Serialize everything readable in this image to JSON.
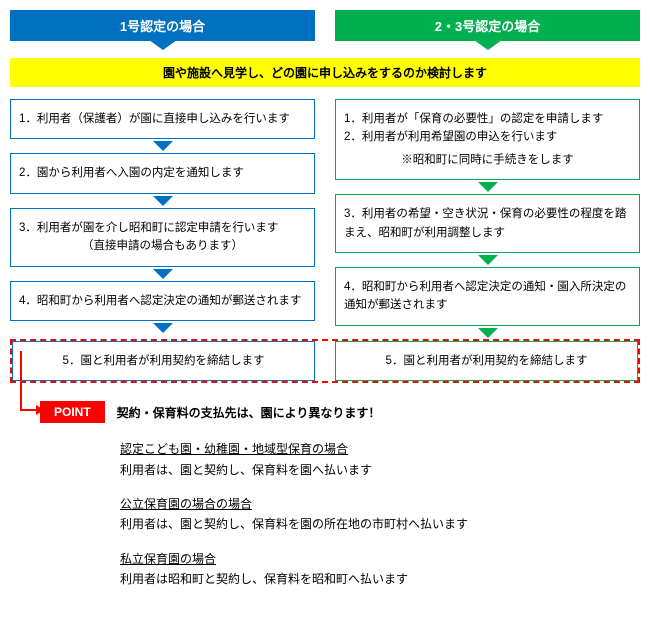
{
  "colors": {
    "left": "#0070c0",
    "right": "#00b050",
    "banner": "#ffff00",
    "dashed": "#ff0000",
    "point": "#ff0000"
  },
  "header": {
    "left": "1号認定の場合",
    "right": "2・3号認定の場合"
  },
  "banner": "園や施設へ見学し、どの園に申し込みをするのか検討します",
  "left_steps": [
    "1．利用者（保護者）が園に直接申し込みを行います",
    "2．園から利用者へ入園の内定を通知します",
    "3．利用者が園を介し昭和町に認定申請を行います\n（直接申請の場合もあります）",
    "4．昭和町から利用者へ認定決定の通知が郵送されます"
  ],
  "right_steps": [
    "1．利用者が「保育の必要性」の認定を申請します\n2．利用者が利用希望園の申込を行います\n※昭和町に同時に手続きをします",
    "3．利用者の希望・空き状況・保育の必要性の程度を踏まえ、昭和町が利用調整します",
    "4．昭和町から利用者へ認定決定の通知・園入所決定の通知が郵送されます"
  ],
  "final": {
    "left": "5．園と利用者が利用契約を締結します",
    "right": "5．園と利用者が利用契約を締結します"
  },
  "point": {
    "badge": "POINT",
    "text": "契約・保育料の支払先は、園により異なります！"
  },
  "details": [
    {
      "title": "認定こども園・幼稚園・地域型保育の場合",
      "body": "利用者は、園と契約し、保育料を園へ払います"
    },
    {
      "title": "公立保育園の場合の場合",
      "body": "利用者は、園と契約し、保育料を園の所在地の市町村へ払います"
    },
    {
      "title": "私立保育園の場合",
      "body": "利用者は昭和町と契約し、保育料を昭和町へ払います"
    }
  ]
}
